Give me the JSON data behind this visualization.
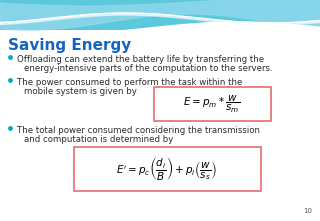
{
  "title": "Saving Energy",
  "title_color": "#1565C0",
  "title_fontsize": 11,
  "bg_color": "#FFFFFF",
  "bullet_color": "#00AACC",
  "text_color": "#2C2C2C",
  "bullet1_line1": "Offloading can extend the battery life by transferring the",
  "bullet1_line2": "energy-intensive parts of the computation to the servers.",
  "bullet2_line1": "The power consumed to perform the task within the",
  "bullet2_line2": "mobile system is given by",
  "formula1": "$E = p_{m} * \\dfrac{w}{s_{m}}$",
  "bullet3_line1": "The total power consumed considering the transmission",
  "bullet3_line2": "and computation is determined by",
  "formula2": "$E^{\\prime} = p_{c}\\left(\\dfrac{d_{i}}{B}\\right) + p_{i}\\left(\\dfrac{w}{s_{s}}\\right)$",
  "formula_box_color": "#E07070",
  "page_num": "10",
  "header_top_color": "#5BC8DC",
  "header_mid_color": "#A8E0EC",
  "text_fontsize": 6.2,
  "formula1_fontsize": 7.5,
  "formula2_fontsize": 7.5
}
